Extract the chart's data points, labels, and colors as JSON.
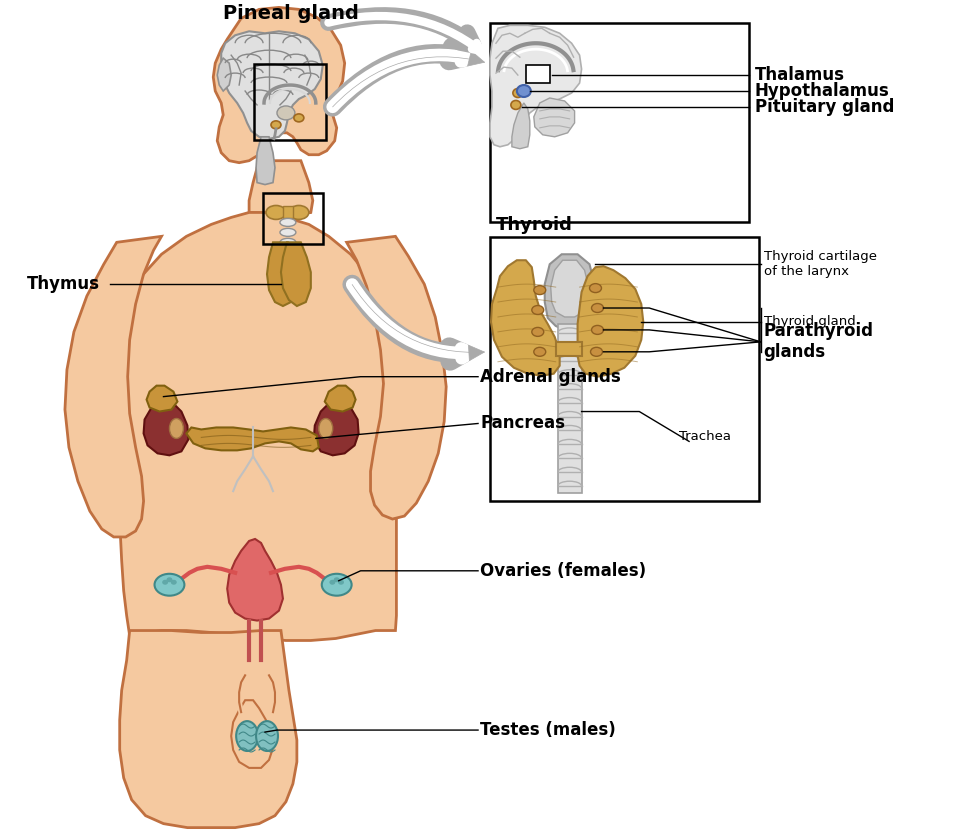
{
  "background_color": "#ffffff",
  "labels": {
    "pineal_gland": "Pineal gland",
    "thalamus": "Thalamus",
    "hypothalamus": "Hypothalamus",
    "pituitary_gland": "Pituitary gland",
    "thyroid": "Thyroid",
    "thyroid_cartilage": "Thyroid cartilage\nof the larynx",
    "thyroid_gland": "Thyroid gland",
    "parathyroid_glands": "Parathyroid\nglands",
    "trachea": "Trachea",
    "thymus": "Thymus",
    "adrenal_glands": "Adrenal glands",
    "pancreas": "Pancreas",
    "ovaries": "Ovaries (females)",
    "testes": "Testes (males)"
  },
  "skin_color": "#F5C9A0",
  "skin_outline": "#C07040",
  "thyroid_color": "#D4A84C",
  "kidney_color": "#8B3030",
  "pancreas_color": "#C8943A",
  "ovary_color": "#E06060",
  "uterus_color": "#D85050",
  "testes_color": "#A8C8C8",
  "arrow_color": "#AAAAAA",
  "brain_bg": "#E8E8E8",
  "brain_line": "#888888"
}
